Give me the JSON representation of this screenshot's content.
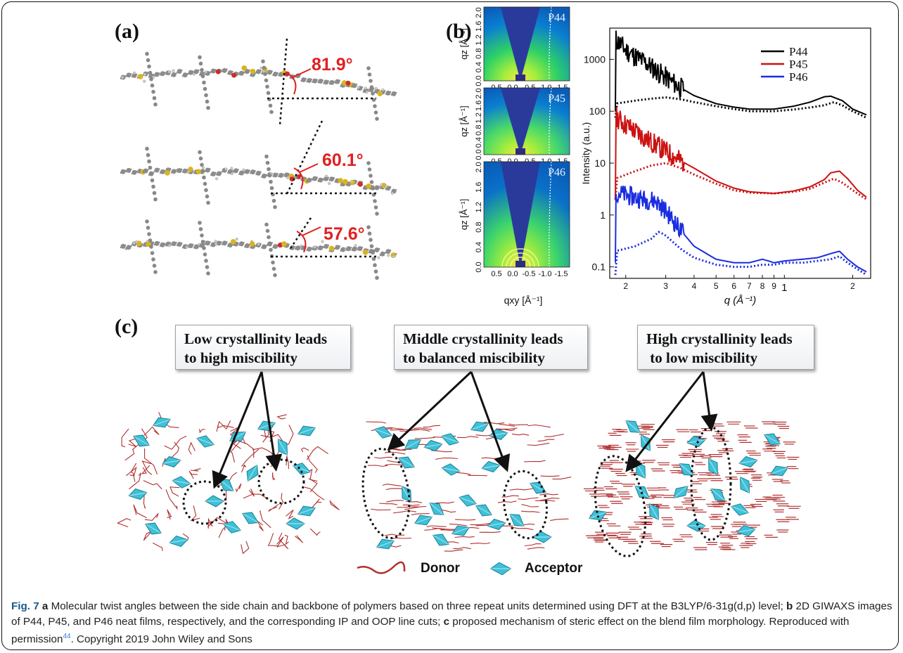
{
  "panel_labels": {
    "a": "(a)",
    "b": "(b)",
    "c": "(c)"
  },
  "panel_a": {
    "angles": [
      "81.9°",
      "60.1°",
      "57.6°"
    ],
    "angle_color": "#e02020"
  },
  "panel_b_images": {
    "labels": [
      "P44",
      "P45",
      "P46"
    ],
    "y_axis_label": "qz [Å⁻¹]",
    "y_ticks": [
      "0.0",
      "0.4",
      "0.8",
      "1.2",
      "1.6",
      "2.0"
    ],
    "x_ticks": [
      "0.5",
      "0.0",
      "-0.5",
      "-1.0",
      "-1.5"
    ],
    "x_axis_label": "qxy [Å⁻¹]"
  },
  "chart_data": {
    "type": "line",
    "xlabel": "q (Å⁻¹)",
    "ylabel": "Intensity (a.u.)",
    "x_scale": "log",
    "y_scale": "log",
    "xlim": [
      0.17,
      2.4
    ],
    "ylim": [
      0.06,
      4000
    ],
    "x_tick_labels": [
      "2",
      "3",
      "4",
      "5",
      "6",
      "7",
      "8",
      "9",
      "1",
      "2"
    ],
    "x_tick_values": [
      0.2,
      0.3,
      0.4,
      0.5,
      0.6,
      0.7,
      0.8,
      0.9,
      1.0,
      2.0
    ],
    "y_tick_labels": [
      "0.1",
      "1",
      "10",
      "100",
      "1000"
    ],
    "y_tick_values": [
      0.1,
      1,
      10,
      100,
      1000
    ],
    "legend_position": "top-right",
    "series": [
      {
        "name": "P44",
        "color": "#000000",
        "solid": {
          "x": [
            0.18,
            0.2,
            0.25,
            0.3,
            0.35,
            0.4,
            0.5,
            0.6,
            0.7,
            0.9,
            1.1,
            1.3,
            1.5,
            1.6,
            1.8,
            2.0,
            2.3
          ],
          "y": [
            2500,
            1500,
            800,
            450,
            280,
            200,
            140,
            120,
            110,
            110,
            125,
            150,
            190,
            195,
            160,
            110,
            85
          ]
        },
        "dotted": {
          "x": [
            0.18,
            0.22,
            0.26,
            0.3,
            0.35,
            0.4,
            0.5,
            0.6,
            0.7,
            0.9,
            1.1,
            1.3,
            1.5,
            1.65,
            1.8,
            2.0,
            2.3
          ],
          "y": [
            140,
            160,
            175,
            185,
            170,
            150,
            125,
            110,
            100,
            100,
            108,
            118,
            130,
            150,
            130,
            100,
            75
          ]
        }
      },
      {
        "name": "P45",
        "color": "#cc1111",
        "solid": {
          "x": [
            0.18,
            0.2,
            0.25,
            0.3,
            0.35,
            0.4,
            0.5,
            0.6,
            0.7,
            0.9,
            1.1,
            1.3,
            1.5,
            1.6,
            1.75,
            1.9,
            2.1,
            2.3
          ],
          "y": [
            80,
            55,
            28,
            17,
            11,
            8,
            4.5,
            3.3,
            2.8,
            2.6,
            2.9,
            3.5,
            4.8,
            6.5,
            7.0,
            5.0,
            3.0,
            2.2
          ]
        },
        "dotted": {
          "x": [
            0.18,
            0.22,
            0.26,
            0.3,
            0.35,
            0.4,
            0.5,
            0.6,
            0.7,
            0.9,
            1.1,
            1.3,
            1.5,
            1.65,
            1.8,
            2.0,
            2.3
          ],
          "y": [
            5,
            7,
            9,
            10,
            8,
            6,
            4,
            3,
            2.7,
            2.6,
            2.8,
            3.2,
            4.2,
            5.0,
            4.2,
            3.0,
            2.0
          ]
        }
      },
      {
        "name": "P46",
        "color": "#1a2ce0",
        "solid": {
          "x": [
            0.18,
            0.2,
            0.24,
            0.27,
            0.3,
            0.35,
            0.4,
            0.5,
            0.6,
            0.7,
            0.8,
            0.85,
            0.9,
            1.0,
            1.2,
            1.4,
            1.6,
            1.75,
            1.9,
            2.1,
            2.3
          ],
          "y": [
            2.8,
            2.4,
            2.0,
            1.9,
            1.2,
            0.5,
            0.25,
            0.14,
            0.12,
            0.12,
            0.14,
            0.13,
            0.12,
            0.13,
            0.14,
            0.15,
            0.18,
            0.2,
            0.14,
            0.1,
            0.08
          ]
        },
        "dotted": {
          "x": [
            0.18,
            0.22,
            0.26,
            0.28,
            0.3,
            0.35,
            0.4,
            0.5,
            0.6,
            0.7,
            0.8,
            0.9,
            1.0,
            1.2,
            1.4,
            1.6,
            1.75,
            1.9,
            2.1,
            2.3
          ],
          "y": [
            0.2,
            0.25,
            0.35,
            0.48,
            0.4,
            0.22,
            0.15,
            0.11,
            0.1,
            0.1,
            0.11,
            0.11,
            0.12,
            0.12,
            0.13,
            0.14,
            0.16,
            0.12,
            0.09,
            0.07
          ]
        }
      }
    ]
  },
  "panel_c": {
    "boxes": [
      [
        "Low crystallinity leads",
        "to high miscibility"
      ],
      [
        "Middle crystallinity leads",
        "to balanced miscibility"
      ],
      [
        "High crystallinity leads",
        " to low miscibility"
      ]
    ],
    "legend": {
      "donor": "Donor",
      "acceptor": "Acceptor"
    },
    "donor_color": "#b03030",
    "acceptor_color": "#3ec1d8"
  },
  "caption": {
    "fig": "Fig. 7",
    "a_label": "a",
    "a_text": " Molecular twist angles between the side chain and backbone of polymers based on three repeat units determined using DFT at the B3LYP/6-31g(d,p) level; ",
    "b_label": "b",
    "b_text": " 2D GIWAXS images of P44, P45, and P46 neat films, respectively, and the corresponding IP and OOP line cuts; ",
    "c_label": "c",
    "c_text": " proposed mechanism of steric effect on the blend film morphology. Reproduced with permission",
    "ref": "44",
    "tail": ". Copyright 2019 John Wiley and Sons"
  }
}
